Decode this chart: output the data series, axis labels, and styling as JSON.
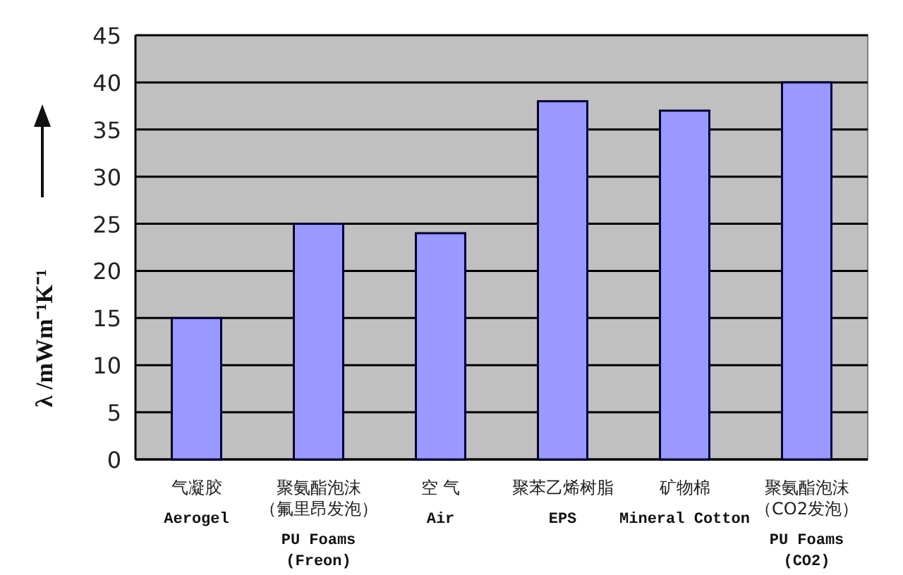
{
  "chart_data": {
    "type": "bar",
    "ylabel": "λ /mWm⁻¹K⁻¹",
    "categories": [
      "气凝胶\nAerogel",
      "聚氨酯泡沫（氟里昂发泡）\nPU Foams\n(Freon)",
      "空 气\nAir",
      "聚苯乙烯树脂\nEPS",
      "矿物棉\nMineral Cotton",
      "聚氨酯泡沫（CO2发泡）\nPU Foams\n(CO2)"
    ],
    "values": [
      15,
      25,
      24,
      38,
      37,
      40
    ],
    "color": "#9999ff",
    "ylim": [
      0,
      45
    ],
    "yticks": [
      0,
      5,
      10,
      15,
      20,
      25,
      30,
      35,
      40,
      45
    ],
    "grid": "y"
  }
}
